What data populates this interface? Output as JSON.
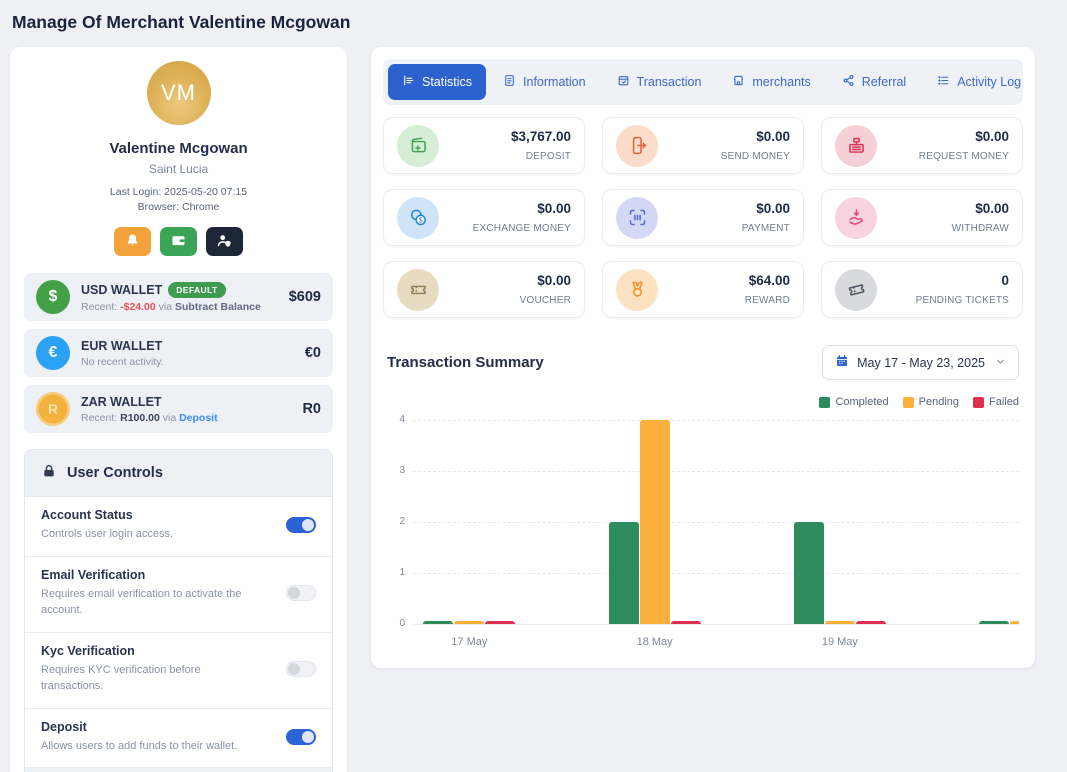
{
  "page": {
    "title": "Manage Of Merchant Valentine Mcgowan"
  },
  "profile": {
    "initials": "VM",
    "name": "Valentine Mcgowan",
    "location": "Saint Lucia",
    "last_login": "Last Login: 2025-05-20 07:15",
    "browser": "Browser: Chrome",
    "actions": [
      {
        "icon": "bell-icon",
        "color": "#f2a33c"
      },
      {
        "icon": "wallet-icon",
        "color": "#3aa557"
      },
      {
        "icon": "user-shield-icon",
        "color": "#1d2737"
      }
    ]
  },
  "wallets": [
    {
      "name": "USD WALLET",
      "badge": "DEFAULT",
      "recent_label": "Recent:",
      "recent_amount": "-$24.00",
      "via": "via",
      "method": "Subtract Balance",
      "balance": "$609",
      "symbol": "$",
      "color": "#43a047"
    },
    {
      "name": "EUR WALLET",
      "note": "No recent activity.",
      "balance": "€0",
      "symbol": "€",
      "color": "#2aa1f2"
    },
    {
      "name": "ZAR WALLET",
      "recent_label": "Recent:",
      "recent_amount": "R100.00",
      "via": "via",
      "method": "Deposit",
      "balance": "R0",
      "symbol": "R",
      "color": "#f2b33d"
    }
  ],
  "user_controls": {
    "title": "User Controls",
    "items": [
      {
        "label": "Account Status",
        "desc": "Controls user login access.",
        "enabled": true
      },
      {
        "label": "Email Verification",
        "desc": "Requires email verification to activate the account.",
        "enabled": false
      },
      {
        "label": "Kyc Verification",
        "desc": "Requires KYC verification before transactions.",
        "enabled": false
      },
      {
        "label": "Deposit",
        "desc": "Allows users to add funds to their wallet.",
        "enabled": true
      }
    ]
  },
  "tabs": [
    {
      "label": "Statistics",
      "icon": "chart-lines-icon",
      "active": true
    },
    {
      "label": "Information",
      "icon": "file-text-icon",
      "active": false
    },
    {
      "label": "Transaction",
      "icon": "calendar-check-icon",
      "active": false
    },
    {
      "label": "merchants",
      "icon": "storefront-icon",
      "active": false
    },
    {
      "label": "Referral",
      "icon": "share-nodes-icon",
      "active": false
    },
    {
      "label": "Activity Log",
      "icon": "list-icon",
      "active": false
    }
  ],
  "stats": [
    {
      "amount": "$3,767.00",
      "label": "DEPOSIT",
      "icon": "wallet-plus-icon",
      "icon_bg": "#d5edd4",
      "icon_color": "#44a253"
    },
    {
      "amount": "$0.00",
      "label": "SEND MONEY",
      "icon": "phone-arrow-icon",
      "icon_bg": "#fbdcca",
      "icon_color": "#e2603b"
    },
    {
      "amount": "$0.00",
      "label": "REQUEST MONEY",
      "icon": "cash-register-icon",
      "icon_bg": "#f7cfd6",
      "icon_color": "#dd3352"
    },
    {
      "amount": "$0.00",
      "label": "EXCHANGE MONEY",
      "icon": "coins-icon",
      "icon_bg": "#cfe4f8",
      "icon_color": "#1e82d6"
    },
    {
      "amount": "$0.00",
      "label": "PAYMENT",
      "icon": "qr-scan-icon",
      "icon_bg": "#d3d9f4",
      "icon_color": "#5566d4"
    },
    {
      "amount": "$0.00",
      "label": "WITHDRAW",
      "icon": "hand-withdraw-icon",
      "icon_bg": "#f8d2de",
      "icon_color": "#e04478"
    },
    {
      "amount": "$0.00",
      "label": "VOUCHER",
      "icon": "ticket-icon",
      "icon_bg": "#e7dcc2",
      "icon_color": "#8b7a4e"
    },
    {
      "amount": "$64.00",
      "label": "REWARD",
      "icon": "medal-icon",
      "icon_bg": "#fbe2c1",
      "icon_color": "#ee8e2d"
    },
    {
      "amount": "0",
      "label": "PENDING TICKETS",
      "icon": "ticket-pending-icon",
      "icon_bg": "#d8dade",
      "icon_color": "#4e555f"
    }
  ],
  "summary": {
    "title": "Transaction Summary",
    "date_range": "May 17 - May 23, 2025"
  },
  "chart_data": {
    "type": "bar",
    "categories": [
      "17 May",
      "18 May",
      "19 May",
      ""
    ],
    "series": [
      {
        "name": "Completed",
        "color": "#2e8b5e",
        "values": [
          0,
          2,
          2,
          0
        ]
      },
      {
        "name": "Pending",
        "color": "#fbb03b",
        "values": [
          0,
          4,
          0,
          0
        ]
      },
      {
        "name": "Failed",
        "color": "#dc3050",
        "values": [
          0,
          0,
          0,
          0
        ]
      }
    ],
    "ylim": [
      0,
      4
    ],
    "yticks": [
      0,
      1,
      2,
      3,
      4
    ],
    "legend_position": "top-right",
    "grid": "dashed-horizontal"
  }
}
